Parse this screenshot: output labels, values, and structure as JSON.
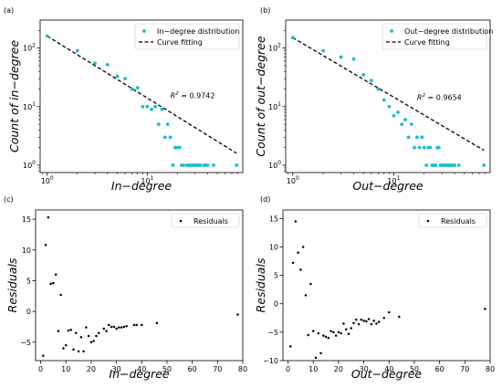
{
  "chart_data": [
    {
      "type": "scatter",
      "panel_label": "(a)",
      "xscale": "log",
      "yscale": "log",
      "xlim": [
        0.85,
        90
      ],
      "ylim": [
        0.75,
        300
      ],
      "xticks": [
        {
          "v": 1,
          "base": "10",
          "exp": "0"
        },
        {
          "v": 10,
          "base": "10",
          "exp": "1"
        }
      ],
      "yticks": [
        {
          "v": 1,
          "base": "10",
          "exp": "0"
        },
        {
          "v": 10,
          "base": "10",
          "exp": "1"
        },
        {
          "v": 100,
          "base": "10",
          "exp": "2"
        }
      ],
      "xlabel": "In−degree",
      "ylabel": "Count of in−degree",
      "legend_position": "top-right",
      "annotation": {
        "text": "R² = 0.9742",
        "x": 17,
        "y": 14
      },
      "fit": {
        "name": "Curve fitting",
        "x": [
          1,
          78
        ],
        "y": [
          160,
          1.6
        ],
        "color": "#000000"
      },
      "series": [
        {
          "name": "In−degree distribution",
          "color": "#17becf",
          "x": [
            1,
            2,
            3,
            4,
            5,
            6,
            7,
            8,
            9,
            10,
            11,
            12,
            13,
            14,
            15,
            16,
            17,
            18,
            19,
            20,
            21,
            22,
            23,
            25,
            26,
            27,
            28,
            29,
            30,
            31,
            32,
            33,
            34,
            37,
            38,
            40,
            46,
            78
          ],
          "y": [
            160,
            90,
            55,
            52,
            33,
            30,
            20,
            21,
            10,
            10,
            9,
            10,
            5,
            9,
            3,
            5,
            3,
            1,
            2,
            2,
            2,
            1,
            1,
            1,
            1,
            1,
            1,
            1,
            1,
            1,
            1,
            1,
            1,
            1,
            1,
            1,
            1,
            1
          ]
        }
      ]
    },
    {
      "type": "scatter",
      "panel_label": "(b)",
      "xscale": "log",
      "yscale": "log",
      "xlim": [
        0.85,
        90
      ],
      "ylim": [
        0.75,
        300
      ],
      "xticks": [
        {
          "v": 1,
          "base": "10",
          "exp": "0"
        },
        {
          "v": 10,
          "base": "10",
          "exp": "1"
        }
      ],
      "yticks": [
        {
          "v": 1,
          "base": "10",
          "exp": "0"
        },
        {
          "v": 10,
          "base": "10",
          "exp": "1"
        },
        {
          "v": 100,
          "base": "10",
          "exp": "2"
        }
      ],
      "xlabel": "Out−degree",
      "ylabel": "Count of out−degree",
      "legend_position": "top-right",
      "annotation": {
        "text": "R² = 0.9654",
        "x": 17,
        "y": 13
      },
      "fit": {
        "name": "Curve fitting",
        "x": [
          1,
          78
        ],
        "y": [
          150,
          1.8
        ],
        "color": "#000000"
      },
      "series": [
        {
          "name": "Out−degree distribution",
          "color": "#17becf",
          "x": [
            1,
            2,
            3,
            4,
            5,
            6,
            7,
            8,
            9,
            10,
            11,
            12,
            13,
            14,
            15,
            16,
            17,
            18,
            19,
            20,
            21,
            22,
            23,
            24,
            25,
            26,
            27,
            28,
            29,
            30,
            31,
            32,
            33,
            34,
            35,
            36,
            38,
            40,
            44,
            78
          ],
          "y": [
            150,
            90,
            70,
            65,
            35,
            28,
            20,
            13,
            10,
            7,
            8,
            5,
            6,
            3,
            5,
            2,
            3,
            2,
            3,
            2,
            1,
            2,
            2,
            1,
            1,
            1,
            2,
            2,
            1,
            1,
            1,
            1,
            1,
            1,
            1,
            1,
            1,
            1,
            1,
            1
          ]
        }
      ]
    },
    {
      "type": "scatter",
      "panel_label": "(c)",
      "xlim": [
        -2,
        80
      ],
      "ylim": [
        -8,
        16.5
      ],
      "xticks": [
        0,
        10,
        20,
        30,
        40,
        50,
        60,
        70,
        80
      ],
      "yticks": [
        -5,
        0,
        5,
        10,
        15
      ],
      "xlabel": "In−degree",
      "ylabel": "Residuals",
      "legend_position": "top-right",
      "series": [
        {
          "name": "Residuals",
          "color": "#000000",
          "x": [
            1,
            2,
            3,
            4,
            5,
            6,
            7,
            8,
            9,
            10,
            11,
            12,
            13,
            14,
            15,
            16,
            17,
            18,
            19,
            20,
            21,
            22,
            23,
            25,
            26,
            27,
            28,
            29,
            30,
            31,
            32,
            33,
            34,
            37,
            38,
            40,
            46,
            78
          ],
          "y": [
            -7.2,
            10.8,
            15.3,
            4.5,
            4.6,
            6.0,
            -3.2,
            2.7,
            -6.0,
            -5.5,
            -3.1,
            -3.0,
            -6.2,
            -3.5,
            -6.5,
            -4.2,
            -6.5,
            -2.6,
            -4.0,
            -5.0,
            -4.8,
            -4.0,
            -3.5,
            -2.8,
            -3.2,
            -2.2,
            -2.5,
            -2.5,
            -2.8,
            -2.6,
            -2.6,
            -2.5,
            -2.4,
            -2.2,
            -2.2,
            -2.2,
            -1.9,
            -0.5
          ]
        }
      ]
    },
    {
      "type": "scatter",
      "panel_label": "(d)",
      "xlim": [
        -2,
        80
      ],
      "ylim": [
        -10,
        16.5
      ],
      "xticks": [
        0,
        10,
        20,
        30,
        40,
        50,
        60,
        70,
        80
      ],
      "yticks": [
        -10,
        -5,
        0,
        5,
        10,
        15
      ],
      "xlabel": "Out−degree",
      "ylabel": "Residuals",
      "legend_position": "top-right",
      "series": [
        {
          "name": "Residuals",
          "color": "#000000",
          "x": [
            1,
            2,
            3,
            4,
            5,
            6,
            7,
            8,
            9,
            10,
            11,
            12,
            13,
            14,
            15,
            16,
            17,
            18,
            19,
            20,
            21,
            22,
            23,
            24,
            25,
            26,
            27,
            28,
            29,
            30,
            31,
            32,
            33,
            34,
            35,
            36,
            38,
            40,
            44,
            78
          ],
          "y": [
            -7.5,
            7.2,
            14.5,
            9.0,
            6.0,
            10.0,
            1.5,
            -5.5,
            3.5,
            -4.8,
            -9.5,
            -5.2,
            -8.7,
            -5.6,
            -5.8,
            -6.0,
            -4.8,
            -5.0,
            -5.6,
            -5.0,
            -5.2,
            -3.5,
            -4.5,
            -5.3,
            -4.3,
            -3.4,
            -2.8,
            -3.6,
            -2.8,
            -3.0,
            -3.1,
            -2.7,
            -3.6,
            -3.0,
            -3.5,
            -3.2,
            -2.5,
            -1.5,
            -2.3,
            -0.9
          ]
        }
      ]
    }
  ]
}
